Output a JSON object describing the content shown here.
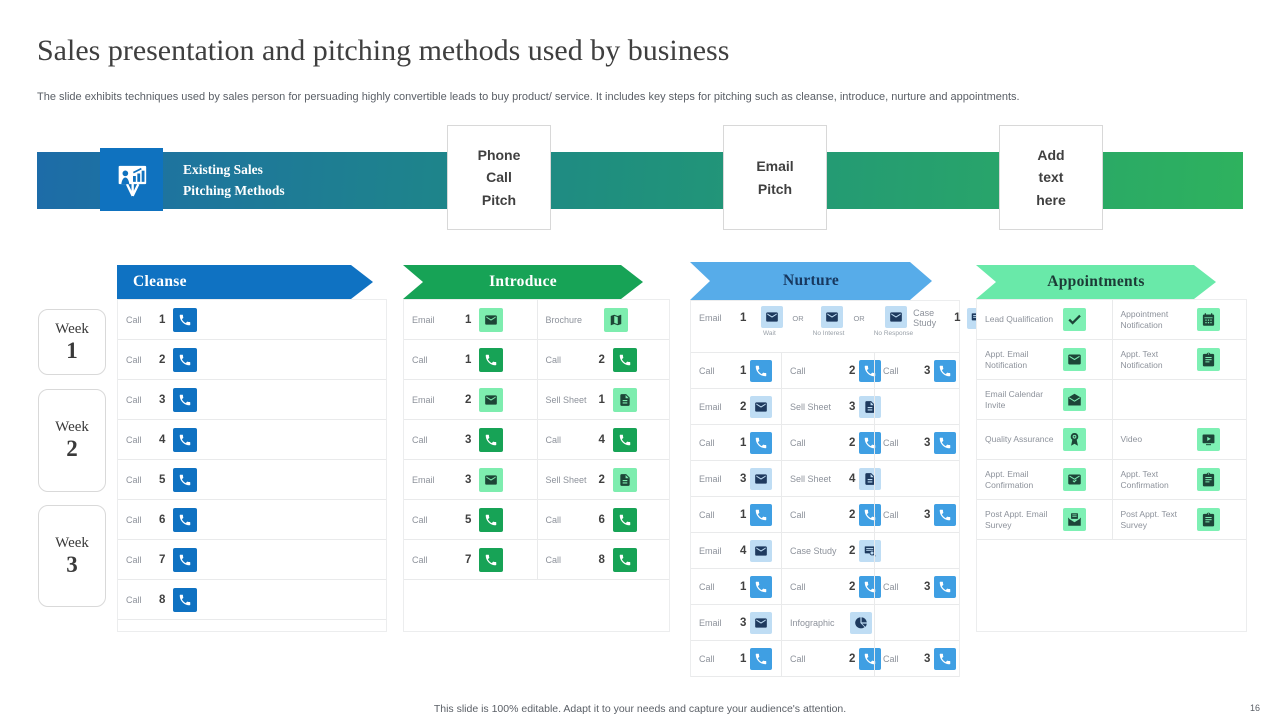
{
  "page": {
    "title": "Sales presentation and pitching methods used by business",
    "subtitle": "The slide exhibits techniques used by sales person for persuading highly convertible leads to buy product/ service. It includes key steps for pitching such as cleanse, introduce, nurture and appointments.",
    "footer": "This slide is 100% editable. Adapt it to your needs and capture your audience's attention.",
    "page_number": "16"
  },
  "banner": {
    "icon": "presentation-icon",
    "icon_bg": "#0f72bf",
    "label": "Existing Sales\nPitching Methods",
    "gradient_start": "#1d6ca8",
    "gradient_end": "#2eb25e",
    "boxes": {
      "box1": "Phone\nCall\nPitch",
      "box2": "Email\nPitch",
      "box3": "Add\ntext\nhere"
    }
  },
  "weeks": [
    {
      "word": "Week",
      "num": "1"
    },
    {
      "word": "Week",
      "num": "2"
    },
    {
      "word": "Week",
      "num": "3"
    }
  ],
  "columns": [
    {
      "id": "cleanse",
      "title": "Cleanse",
      "arrow_style": "flat",
      "theme": {
        "arrow": "#0f72c2",
        "arrow_text": "#ffffff",
        "solid": "#0f72c2",
        "light": "#9dc9ec",
        "glyph": "#ffffff"
      },
      "rows": [
        {
          "cells": [
            {
              "t": "Call",
              "n": "1",
              "i": "phone",
              "s": "solid"
            }
          ]
        },
        {
          "cells": [
            {
              "t": "Call",
              "n": "2",
              "i": "phone",
              "s": "solid"
            }
          ]
        },
        {
          "cells": [
            {
              "t": "Call",
              "n": "3",
              "i": "phone",
              "s": "solid"
            }
          ]
        },
        {
          "cells": [
            {
              "t": "Call",
              "n": "4",
              "i": "phone",
              "s": "solid"
            }
          ]
        },
        {
          "cells": [
            {
              "t": "Call",
              "n": "5",
              "i": "phone",
              "s": "solid"
            }
          ]
        },
        {
          "cells": [
            {
              "t": "Call",
              "n": "6",
              "i": "phone",
              "s": "solid"
            }
          ]
        },
        {
          "cells": [
            {
              "t": "Call",
              "n": "7",
              "i": "phone",
              "s": "solid"
            }
          ]
        },
        {
          "cells": [
            {
              "t": "Call",
              "n": "8",
              "i": "phone",
              "s": "solid"
            }
          ]
        },
        {
          "empty": true
        }
      ]
    },
    {
      "id": "introduce",
      "title": "Introduce",
      "arrow_style": "notch",
      "theme": {
        "arrow": "#17a356",
        "arrow_text": "#ffffff",
        "solid": "#17a356",
        "light": "#7eedaf",
        "glyph": "#1d4637"
      },
      "rows": [
        {
          "cells": [
            {
              "t": "Email",
              "n": "1",
              "i": "envelope",
              "s": "light"
            },
            {
              "t": "Brochure",
              "i": "map",
              "s": "light"
            }
          ]
        },
        {
          "cells": [
            {
              "t": "Call",
              "n": "1",
              "i": "phone",
              "s": "solid"
            },
            {
              "t": "Call",
              "n": "2",
              "i": "phone",
              "s": "solid"
            }
          ]
        },
        {
          "cells": [
            {
              "t": "Email",
              "n": "2",
              "i": "envelope",
              "s": "light"
            },
            {
              "t": "Sell Sheet",
              "n": "1",
              "i": "document",
              "s": "light"
            }
          ]
        },
        {
          "cells": [
            {
              "t": "Call",
              "n": "3",
              "i": "phone",
              "s": "solid"
            },
            {
              "t": "Call",
              "n": "4",
              "i": "phone",
              "s": "solid"
            }
          ]
        },
        {
          "cells": [
            {
              "t": "Email",
              "n": "3",
              "i": "envelope",
              "s": "light"
            },
            {
              "t": "Sell Sheet",
              "n": "2",
              "i": "document",
              "s": "light"
            }
          ]
        },
        {
          "cells": [
            {
              "t": "Call",
              "n": "5",
              "i": "phone",
              "s": "solid"
            },
            {
              "t": "Call",
              "n": "6",
              "i": "phone",
              "s": "solid"
            }
          ]
        },
        {
          "cells": [
            {
              "t": "Call",
              "n": "7",
              "i": "phone",
              "s": "solid"
            },
            {
              "t": "Call",
              "n": "8",
              "i": "phone",
              "s": "solid"
            }
          ]
        },
        {
          "empty": true
        }
      ]
    },
    {
      "id": "nurture",
      "title": "Nurture",
      "arrow_style": "notch",
      "theme": {
        "arrow": "#57ace9",
        "arrow_text": "#17375e",
        "solid": "#3f9fe3",
        "light": "#bfddf4",
        "glyph": "#1e3a5f"
      },
      "rows": [
        {
          "or_row": {
            "lead": {
              "t": "Email",
              "n": "1"
            },
            "or": "OR",
            "options": [
              {
                "i": "envelope",
                "caption": "Wait"
              },
              {
                "i": "envelope",
                "caption": "No Interest"
              },
              {
                "i": "envelope",
                "caption": "No Response"
              }
            ],
            "tail": {
              "t": "Case Study",
              "n": "1",
              "i": "case-study"
            }
          }
        },
        {
          "cells": [
            {
              "t": "Call",
              "n": "1",
              "i": "phone",
              "s": "solid"
            },
            {
              "t": "Call",
              "n": "2",
              "i": "phone",
              "s": "solid"
            },
            {
              "t": "Call",
              "n": "3",
              "i": "phone",
              "s": "solid"
            }
          ]
        },
        {
          "cells": [
            {
              "t": "Email",
              "n": "2",
              "i": "envelope",
              "s": "light"
            },
            {
              "t": "Sell Sheet",
              "n": "3",
              "i": "document",
              "s": "light"
            },
            null
          ]
        },
        {
          "cells": [
            {
              "t": "Call",
              "n": "1",
              "i": "phone",
              "s": "solid"
            },
            {
              "t": "Call",
              "n": "2",
              "i": "phone",
              "s": "solid"
            },
            {
              "t": "Call",
              "n": "3",
              "i": "phone",
              "s": "solid"
            }
          ]
        },
        {
          "cells": [
            {
              "t": "Email",
              "n": "3",
              "i": "envelope",
              "s": "light"
            },
            {
              "t": "Sell Sheet",
              "n": "4",
              "i": "document",
              "s": "light"
            },
            null
          ]
        },
        {
          "cells": [
            {
              "t": "Call",
              "n": "1",
              "i": "phone",
              "s": "solid"
            },
            {
              "t": "Call",
              "n": "2",
              "i": "phone",
              "s": "solid"
            },
            {
              "t": "Call",
              "n": "3",
              "i": "phone",
              "s": "solid"
            }
          ]
        },
        {
          "cells": [
            {
              "t": "Email",
              "n": "4",
              "i": "envelope",
              "s": "light"
            },
            {
              "t": "Case Study",
              "n": "2",
              "i": "case-study",
              "s": "light"
            },
            null
          ]
        },
        {
          "cells": [
            {
              "t": "Call",
              "n": "1",
              "i": "phone",
              "s": "solid"
            },
            {
              "t": "Call",
              "n": "2",
              "i": "phone",
              "s": "solid"
            },
            {
              "t": "Call",
              "n": "3",
              "i": "phone",
              "s": "solid"
            }
          ]
        },
        {
          "cells": [
            {
              "t": "Email",
              "n": "3",
              "i": "envelope",
              "s": "light"
            },
            {
              "t": "Infographic",
              "i": "pie",
              "s": "light"
            },
            null
          ]
        },
        {
          "cells": [
            {
              "t": "Call",
              "n": "1",
              "i": "phone",
              "s": "solid"
            },
            {
              "t": "Call",
              "n": "2",
              "i": "phone",
              "s": "solid"
            },
            {
              "t": "Call",
              "n": "3",
              "i": "phone",
              "s": "solid"
            }
          ]
        },
        {
          "empty": true
        }
      ]
    },
    {
      "id": "appointments",
      "title": "Appointments",
      "arrow_style": "notch",
      "theme": {
        "arrow": "#69e9a9",
        "arrow_text": "#1c3a36",
        "solid": "#17a356",
        "light": "#7ef0b4",
        "glyph": "#1d4538"
      },
      "rows": [
        {
          "cells": [
            {
              "t": "Lead Qualification",
              "i": "check",
              "s": "light"
            },
            {
              "t": "Appointment Notification",
              "i": "calendar",
              "s": "light"
            }
          ]
        },
        {
          "cells": [
            {
              "t": "Appt. Email Notification",
              "i": "envelope",
              "s": "light"
            },
            {
              "t": "Appt. Text Notification",
              "i": "clipboard",
              "s": "light"
            }
          ]
        },
        {
          "cells": [
            {
              "t": "Email Calendar Invite",
              "i": "envelope-open",
              "s": "light"
            },
            null
          ]
        },
        {
          "cells": [
            {
              "t": "Quality Assurance",
              "i": "award",
              "s": "light"
            },
            {
              "t": "Video",
              "i": "video",
              "s": "light"
            }
          ]
        },
        {
          "cells": [
            {
              "t": "Appt. Email Confirmation",
              "i": "envelope-check",
              "s": "light"
            },
            {
              "t": "Appt. Text Confirmation",
              "i": "clipboard",
              "s": "light"
            }
          ]
        },
        {
          "cells": [
            {
              "t": "Post Appt. Email Survey",
              "i": "envelope-doc",
              "s": "light"
            },
            {
              "t": "Post Appt. Text Survey",
              "i": "clipboard",
              "s": "light"
            }
          ]
        },
        {
          "empty": true
        }
      ]
    }
  ]
}
